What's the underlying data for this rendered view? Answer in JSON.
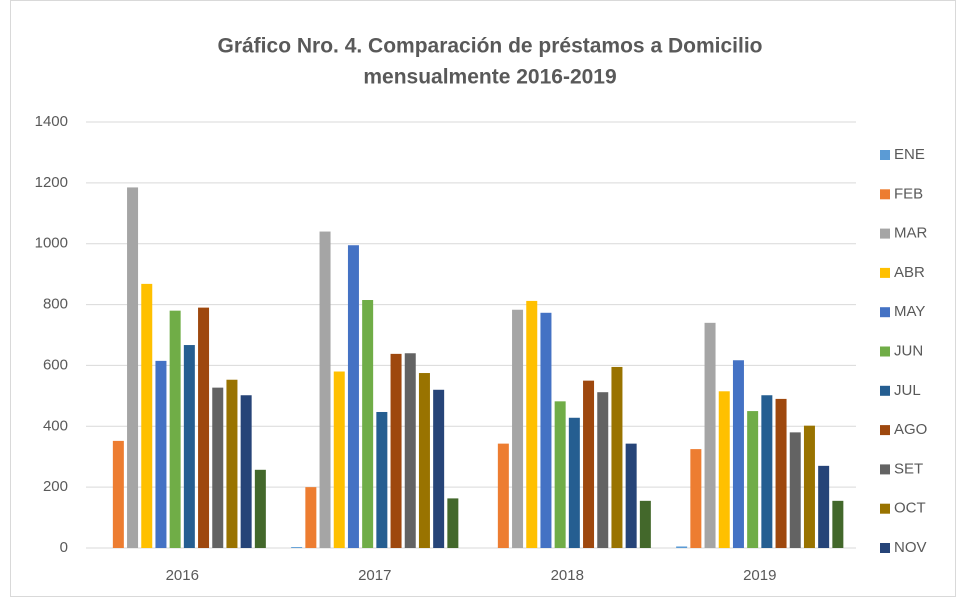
{
  "chart_data": {
    "type": "bar",
    "title": [
      "Gráfico Nro. 4. Comparación de préstamos a Domicilio",
      "mensualmente 2016-2019"
    ],
    "categories": [
      "2016",
      "2017",
      "2018",
      "2019"
    ],
    "ylim": [
      0,
      1400
    ],
    "yticks": [
      0,
      200,
      400,
      600,
      800,
      1000,
      1200,
      1400
    ],
    "grid": true,
    "legend": "right",
    "series": [
      {
        "name": "ENE",
        "color": "#5b9bd5",
        "values": [
          0,
          3,
          0,
          5
        ]
      },
      {
        "name": "FEB",
        "color": "#ed7d31",
        "values": [
          352,
          200,
          343,
          325
        ]
      },
      {
        "name": "MAR",
        "color": "#a5a5a5",
        "values": [
          1185,
          1040,
          783,
          740
        ]
      },
      {
        "name": "ABR",
        "color": "#ffc000",
        "values": [
          868,
          580,
          812,
          515
        ]
      },
      {
        "name": "MAY",
        "color": "#4472c4",
        "values": [
          615,
          995,
          773,
          617
        ]
      },
      {
        "name": "JUN",
        "color": "#70ad47",
        "values": [
          780,
          815,
          482,
          450
        ]
      },
      {
        "name": "JUL",
        "color": "#255e91",
        "values": [
          667,
          447,
          428,
          502
        ]
      },
      {
        "name": "AGO",
        "color": "#9e480e",
        "values": [
          790,
          638,
          550,
          490
        ]
      },
      {
        "name": "SET",
        "color": "#636363",
        "values": [
          527,
          640,
          512,
          380
        ]
      },
      {
        "name": "OCT",
        "color": "#997300",
        "values": [
          553,
          575,
          595,
          402
        ]
      },
      {
        "name": "NOV",
        "color": "#264478",
        "values": [
          502,
          520,
          343,
          270
        ]
      },
      {
        "name": null,
        "color": "#43682b",
        "values": [
          257,
          163,
          155,
          155
        ]
      }
    ]
  }
}
